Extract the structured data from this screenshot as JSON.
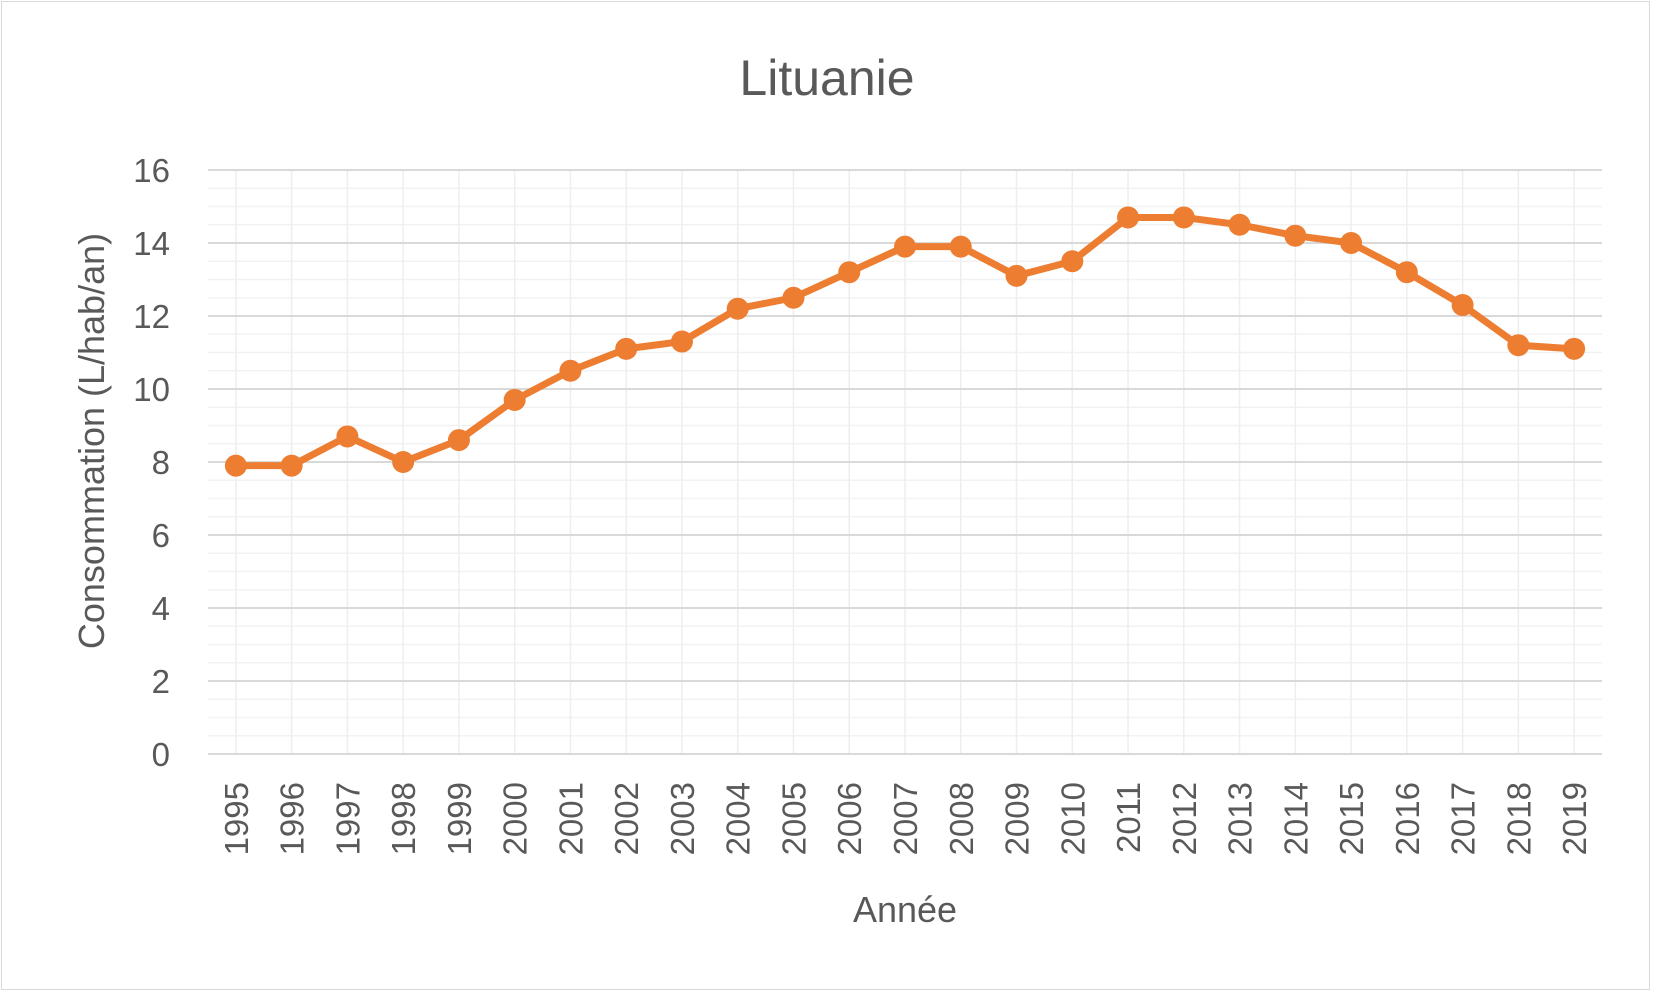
{
  "chart_data": {
    "type": "line",
    "title": "Lituanie",
    "xlabel": "Année",
    "ylabel": "Consommation (L/hab/an)",
    "ylim": [
      0,
      16
    ],
    "yticks": [
      "0",
      "2",
      "4",
      "6",
      "8",
      "10",
      "12",
      "14",
      "16"
    ],
    "grid": true,
    "legend": "none",
    "color": "#ED7D31",
    "x": [
      "1995",
      "1996",
      "1997",
      "1998",
      "1999",
      "2000",
      "2001",
      "2002",
      "2003",
      "2004",
      "2005",
      "2006",
      "2007",
      "2008",
      "2009",
      "2010",
      "2011",
      "2012",
      "2013",
      "2014",
      "2015",
      "2016",
      "2017",
      "2018",
      "2019"
    ],
    "series": [
      {
        "values": [
          7.9,
          7.9,
          8.7,
          8.0,
          8.6,
          9.7,
          10.5,
          11.1,
          11.3,
          12.2,
          12.5,
          13.2,
          13.9,
          13.9,
          13.1,
          13.5,
          14.7,
          14.7,
          14.5,
          14.2,
          14.0,
          13.2,
          12.3,
          11.2,
          11.1
        ]
      }
    ]
  }
}
